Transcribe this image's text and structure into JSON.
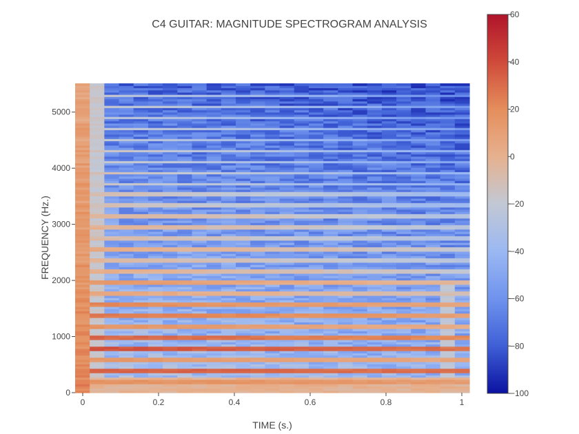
{
  "chart_data": {
    "type": "heatmap",
    "title": "C4 GUITAR: MAGNITUDE SPECTROGRAM ANALYSIS",
    "xlabel": "TIME (s.)",
    "ylabel": "FREQUENCY (Hz.)",
    "xlim": [
      -0.02,
      1.02
    ],
    "ylim": [
      0,
      5512
    ],
    "x_ticks": [
      0,
      0.2,
      0.4,
      0.6,
      0.8,
      1
    ],
    "x_tick_labels": [
      "0",
      "0.2",
      "0.4",
      "0.6",
      "0.8",
      "1"
    ],
    "y_ticks": [
      0,
      1000,
      2000,
      3000,
      4000,
      5000
    ],
    "y_tick_labels": [
      "0",
      "1000",
      "2000",
      "3000",
      "4000",
      "5000"
    ],
    "colorbar": {
      "min": -100,
      "max": 60,
      "ticks": [
        60,
        40,
        20,
        0,
        -20,
        -40,
        -60,
        -80,
        -100
      ],
      "tick_labels": [
        "60",
        "40",
        "20",
        "0",
        "−20",
        "−40",
        "−60",
        "−80",
        "−100"
      ],
      "colorscale": [
        "#0a12a0",
        "#3f5fd6",
        "#6f93ee",
        "#9bb8f2",
        "#c2c8d4",
        "#e6b18f",
        "#e58e5c",
        "#cf4a3a",
        "#b0142a"
      ]
    },
    "harmonics_hz": [
      196,
      392,
      588,
      784,
      980,
      1176,
      1372,
      1568,
      1764,
      1960,
      2156,
      2352,
      2548,
      2744,
      2940,
      3136,
      3332,
      3528,
      3724,
      3920,
      4116,
      4312,
      4508,
      4704,
      4900,
      5096,
      5292
    ],
    "harmonic_peak_db": [
      18,
      35,
      14,
      38,
      32,
      16,
      26,
      22,
      6,
      14,
      2,
      -4,
      4,
      -6,
      0,
      -2,
      -10,
      -8,
      -14,
      -10,
      -16,
      -12,
      -18,
      -16,
      -20,
      -14,
      -18
    ],
    "time_frames": 27,
    "frequency_bins": 140
  }
}
